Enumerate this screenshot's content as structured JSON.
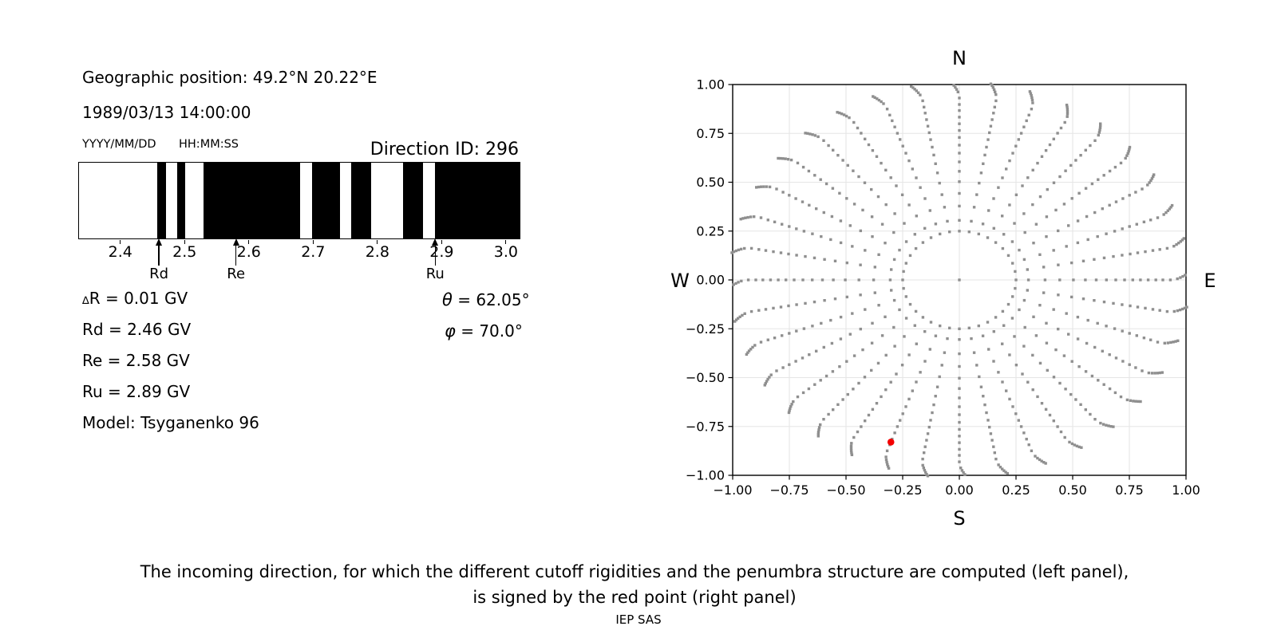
{
  "header": {
    "geo_position": "Geographic position: 49.2°N 20.22°E",
    "datetime": "1989/03/13 14:00:00",
    "date_format": "YYYY/MM/DD",
    "time_format": "HH:MM:SS",
    "direction_id": "Direction ID: 296"
  },
  "values": {
    "delta_symbol": "∆",
    "delta_r": "R = 0.01 GV",
    "rd": "Rd = 2.46 GV",
    "re": "Re = 2.58 GV",
    "ru": "Ru = 2.89 GV",
    "theta_symbol": "θ",
    "theta_value": " = 62.05°",
    "phi_symbol": "φ",
    "phi_value": " = 70.0°",
    "model": "Model: Tsyganenko 96"
  },
  "caption": {
    "line1": "The incoming direction, for which the different cutoff rigidities and the penumbra structure are computed (left panel),",
    "line2": "is signed by the red point (right panel)",
    "credit": "IEP SAS"
  },
  "chart_data": [
    {
      "type": "barcode",
      "title": "penumbra structure vs rigidity (GV)",
      "xlim": [
        2.3345,
        3.0225
      ],
      "ticks": [
        {
          "v": 2.4,
          "label": "2.4"
        },
        {
          "v": 2.5,
          "label": "2.5"
        },
        {
          "v": 2.6,
          "label": "2.6"
        },
        {
          "v": 2.7,
          "label": "2.7"
        },
        {
          "v": 2.8,
          "label": "2.8"
        },
        {
          "v": 2.9,
          "label": "2.9"
        },
        {
          "v": 3.0,
          "label": "3.0"
        }
      ],
      "black_intervals": [
        [
          2.457,
          2.47
        ],
        [
          2.488,
          2.5
        ],
        [
          2.529,
          2.68
        ],
        [
          2.699,
          2.742
        ],
        [
          2.76,
          2.791
        ],
        [
          2.84,
          2.872
        ],
        [
          2.89,
          3.0225
        ]
      ],
      "markers": [
        {
          "label": "Rd",
          "v": 2.46
        },
        {
          "label": "Re",
          "v": 2.58
        },
        {
          "label": "Ru",
          "v": 2.89
        }
      ],
      "bar_color": "#000000"
    },
    {
      "type": "scatter",
      "xlim": [
        -1,
        1
      ],
      "ylim": [
        -1,
        1
      ],
      "grid": true,
      "grid_color": "#e5e5e5",
      "axis_color": "#000000",
      "dot_color": "#8f8f8f",
      "xticks": [
        {
          "v": -1.0,
          "label": "−1.00"
        },
        {
          "v": -0.75,
          "label": "−0.75"
        },
        {
          "v": -0.5,
          "label": "−0.50"
        },
        {
          "v": -0.25,
          "label": "−0.25"
        },
        {
          "v": 0.0,
          "label": "0.00"
        },
        {
          "v": 0.25,
          "label": "0.25"
        },
        {
          "v": 0.5,
          "label": "0.50"
        },
        {
          "v": 0.75,
          "label": "0.75"
        },
        {
          "v": 1.0,
          "label": "1.00"
        }
      ],
      "yticks": [
        {
          "v": -1.0,
          "label": "−1.00"
        },
        {
          "v": -0.75,
          "label": "−0.75"
        },
        {
          "v": -0.5,
          "label": "−0.50"
        },
        {
          "v": -0.25,
          "label": "−0.25"
        },
        {
          "v": 0.0,
          "label": "0.00"
        },
        {
          "v": 0.25,
          "label": "0.25"
        },
        {
          "v": 0.5,
          "label": "0.50"
        },
        {
          "v": 0.75,
          "label": "0.75"
        },
        {
          "v": 1.0,
          "label": "1.00"
        }
      ],
      "compass": {
        "top": "N",
        "right": "E",
        "bottom": "S",
        "left": "W"
      },
      "spokes": {
        "count": 36,
        "azimuth_start_deg": 0,
        "azimuth_step_deg": 10,
        "radii": [
          0.25,
          0.305,
          0.378,
          0.443,
          0.503,
          0.556,
          0.604,
          0.649,
          0.69,
          0.729,
          0.765,
          0.799,
          0.833,
          0.867,
          0.898,
          0.931
        ],
        "tip_radii": [
          0.962,
          0.975,
          0.986,
          0.996,
          1.005,
          1.013
        ],
        "tip_curl_deg_per_step": -0.35,
        "clip": 1.004,
        "inner_circle_radius": 0.25,
        "center_dot": true
      },
      "red_point": {
        "x": -0.302,
        "y": -0.83,
        "color": "#f40000"
      }
    }
  ]
}
